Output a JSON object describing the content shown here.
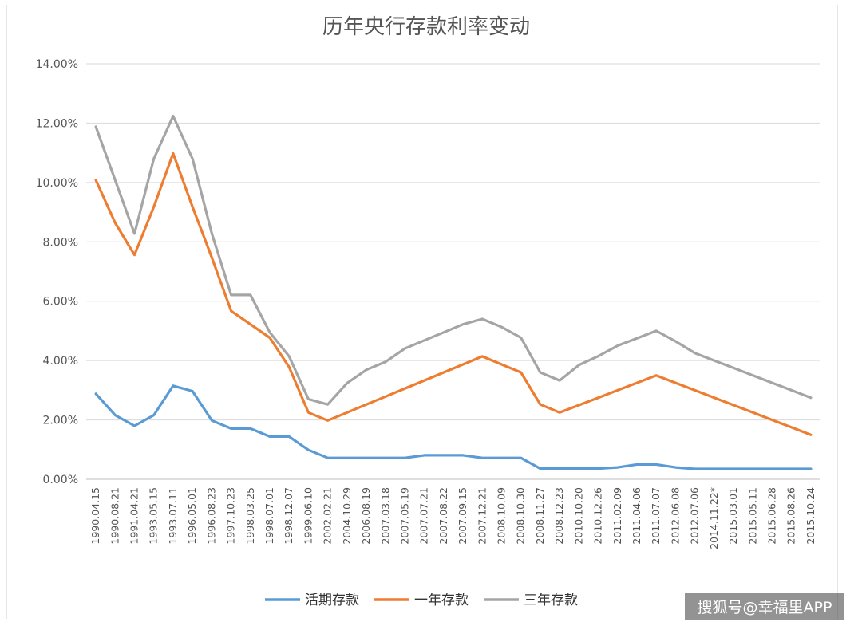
{
  "chart_data": {
    "type": "line",
    "title": "历年央行存款利率变动",
    "y_ticks": [
      "0.00%",
      "2.00%",
      "4.00%",
      "6.00%",
      "8.00%",
      "10.00%",
      "12.00%",
      "14.00%"
    ],
    "ylim": [
      0,
      14
    ],
    "grid": true,
    "legend_position": "bottom",
    "x": [
      "1990.04.15",
      "1990.08.21",
      "1991.04.21",
      "1993.05.15",
      "1993.07.11",
      "1996.05.01",
      "1996.08.23",
      "1997.10.23",
      "1998.03.25",
      "1998.07.01",
      "1998.12.07",
      "1999.06.10",
      "2002.02.21",
      "2004.10.29",
      "2006.08.19",
      "2007.03.18",
      "2007.05.19",
      "2007.07.21",
      "2007.08.22",
      "2007.09.15",
      "2007.12.21",
      "2008.10.09",
      "2008.10.30",
      "2008.11.27",
      "2008.12.23",
      "2010.10.20",
      "2010.12.26",
      "2011.02.09",
      "2011.04.06",
      "2011.07.07",
      "2012.06.08",
      "2012.07.06",
      "2014.11.22*",
      "2015.03.01",
      "2015.05.11",
      "2015.06.28",
      "2015.08.26",
      "2015.10.24"
    ],
    "series": [
      {
        "name": "活期存款",
        "color": "#5b9bd5",
        "values": [
          2.88,
          2.16,
          1.8,
          2.16,
          3.15,
          2.97,
          1.98,
          1.71,
          1.71,
          1.44,
          1.44,
          0.99,
          0.72,
          0.72,
          0.72,
          0.72,
          0.72,
          0.81,
          0.81,
          0.81,
          0.72,
          0.72,
          0.72,
          0.36,
          0.36,
          0.36,
          0.36,
          0.4,
          0.5,
          0.5,
          0.4,
          0.35,
          0.35,
          0.35,
          0.35,
          0.35,
          0.35,
          0.35
        ]
      },
      {
        "name": "一年存款",
        "color": "#ed7d31",
        "values": [
          10.08,
          8.64,
          7.56,
          9.18,
          10.98,
          9.18,
          7.47,
          5.67,
          5.22,
          4.77,
          3.78,
          2.25,
          1.98,
          2.25,
          2.52,
          2.79,
          3.06,
          3.33,
          3.6,
          3.87,
          4.14,
          3.87,
          3.6,
          2.52,
          2.25,
          2.5,
          2.75,
          3.0,
          3.25,
          3.5,
          3.25,
          3.0,
          2.75,
          2.5,
          2.25,
          2.0,
          1.75,
          1.5
        ]
      },
      {
        "name": "三年存款",
        "color": "#a5a5a5",
        "values": [
          11.88,
          10.08,
          8.28,
          10.8,
          12.24,
          10.8,
          8.28,
          6.21,
          6.21,
          4.95,
          4.14,
          2.7,
          2.52,
          3.24,
          3.69,
          3.96,
          4.41,
          4.68,
          4.95,
          5.22,
          5.4,
          5.13,
          4.77,
          3.6,
          3.33,
          3.85,
          4.15,
          4.5,
          4.75,
          5.0,
          4.65,
          4.25,
          4.0,
          3.75,
          3.5,
          3.25,
          3.0,
          2.75
        ]
      }
    ]
  },
  "watermark": "搜狐号@幸福里APP"
}
